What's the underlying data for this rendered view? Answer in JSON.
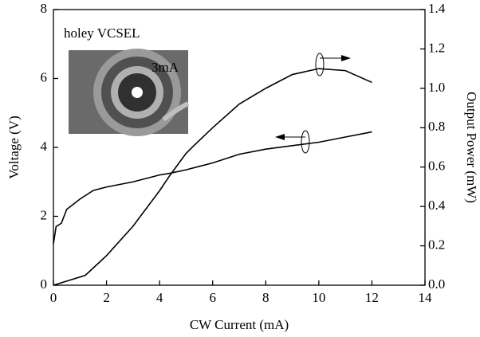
{
  "chart_data": {
    "type": "line",
    "xlabel": "CW Current (mA)",
    "ylabel": "Voltage (V)",
    "y2label": "Output Power (mW)",
    "annotations": [
      "holey VCSEL",
      "3mA"
    ],
    "xlim": [
      0,
      14
    ],
    "xticks": [
      0,
      2,
      4,
      6,
      8,
      10,
      12,
      14
    ],
    "ylim": [
      0,
      8
    ],
    "yticks": [
      0,
      2,
      4,
      6,
      8
    ],
    "y2lim": [
      0,
      1.4
    ],
    "y2ticks": [
      {
        "value": 0,
        "label": "0.0"
      },
      0.2,
      0.4,
      0.6,
      0.8,
      {
        "value": 1,
        "label": "1.0"
      },
      1.2,
      1.4
    ],
    "series": [
      {
        "color": "#000000",
        "axis": "y",
        "x": [
          0,
          0.1,
          0.3,
          0.5,
          1,
          1.5,
          2,
          3,
          4,
          4.4,
          5,
          6,
          7,
          8,
          9,
          10,
          11,
          12
        ],
        "values": [
          1.2,
          1.7,
          1.8,
          2.2,
          2.5,
          2.75,
          2.85,
          3.0,
          3.2,
          3.25,
          3.35,
          3.55,
          3.8,
          3.95,
          4.05,
          4.15,
          4.3,
          4.45
        ]
      },
      {
        "color": "#000000",
        "axis": "y2",
        "x": [
          0,
          1.2,
          2,
          3,
          4,
          4.4,
          5,
          5.3,
          6,
          7,
          8,
          9,
          10,
          11,
          12
        ],
        "values": [
          0,
          0.05,
          0.15,
          0.3,
          0.48,
          0.56,
          0.67,
          0.71,
          0.8,
          0.92,
          1.0,
          1.07,
          1.1,
          1.09,
          1.03
        ]
      }
    ]
  }
}
